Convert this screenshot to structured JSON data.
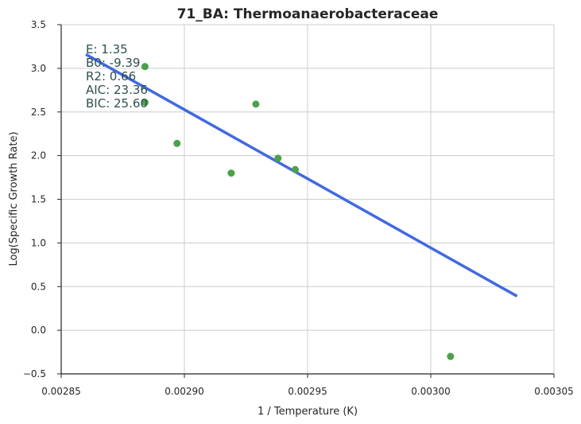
{
  "chart_data": {
    "type": "scatter",
    "title": "71_BA: Thermoanaerobacteraceae",
    "xlabel": "1 / Temperature (K)",
    "ylabel": "Log(Specific Growth Rate)",
    "xlim": [
      0.00285,
      0.00305
    ],
    "ylim": [
      -0.5,
      3.5
    ],
    "xticks": [
      "0.00285",
      "0.00290",
      "0.00295",
      "0.00300",
      "0.00305"
    ],
    "xtick_values": [
      0.00285,
      0.0029,
      0.00295,
      0.003,
      0.00305
    ],
    "yticks": [
      "−0.5",
      "0.0",
      "0.5",
      "1.0",
      "1.5",
      "2.0",
      "2.5",
      "3.0",
      "3.5"
    ],
    "ytick_values": [
      -0.5,
      0.0,
      0.5,
      1.0,
      1.5,
      2.0,
      2.5,
      3.0,
      3.5
    ],
    "grid": true,
    "points": {
      "color": "#4aa14a",
      "x": [
        0.002884,
        0.002884,
        0.002897,
        0.002919,
        0.002929,
        0.002938,
        0.002945,
        0.003008
      ],
      "y": [
        3.02,
        2.61,
        2.14,
        1.8,
        2.59,
        1.97,
        1.84,
        -0.3
      ]
    },
    "fit_line": {
      "color": "#4169e1",
      "x": [
        0.00286,
        0.003035
      ],
      "y": [
        3.16,
        0.39
      ]
    },
    "annotations": [
      "E:  1.35",
      "B0:  -9.39",
      "R2:  0.66",
      "AIC: 23.36",
      "BIC: 25.60"
    ]
  }
}
